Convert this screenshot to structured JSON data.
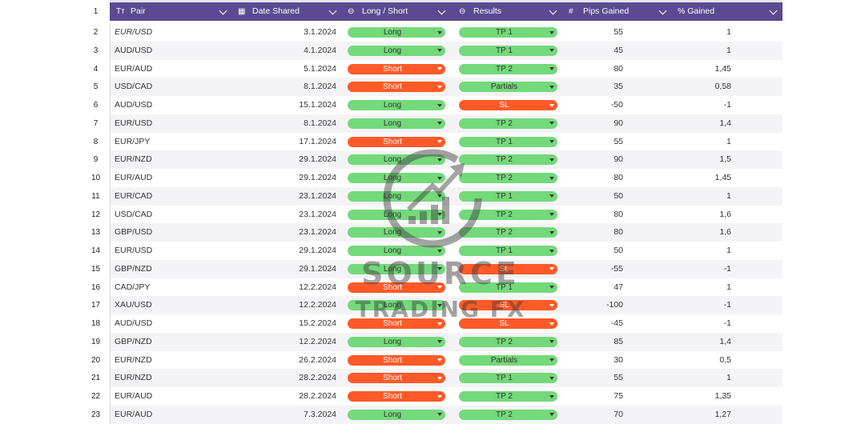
{
  "header": {
    "row_number": "1",
    "columns": [
      {
        "key": "pair",
        "label": "Pair",
        "icon": "text-type-icon",
        "glyph": "Tт"
      },
      {
        "key": "date",
        "label": "Date Shared",
        "icon": "calendar-icon",
        "glyph": "▦"
      },
      {
        "key": "long_short",
        "label": "Long / Short",
        "icon": "select-icon",
        "glyph": "⊖"
      },
      {
        "key": "results",
        "label": "Results",
        "icon": "select-icon",
        "glyph": "⊖"
      },
      {
        "key": "pips",
        "label": "Pips Gained",
        "icon": "number-icon",
        "glyph": "#"
      },
      {
        "key": "pct",
        "label": "% Gained",
        "icon": "none",
        "glyph": ""
      }
    ]
  },
  "colors": {
    "header_bg": "#5b4a91",
    "long_green": "#74d97a",
    "short_red": "#ff5a28",
    "row_alt": "#f4f4f7"
  },
  "watermark": {
    "line1": "SOURCE",
    "line2": "TRADING FX"
  },
  "rows": [
    {
      "n": "2",
      "pair": "EUR/USD",
      "date": "3.1.2024",
      "dir": "Long",
      "res": "TP 1",
      "res_c": "green",
      "pips": "55",
      "pct": "1"
    },
    {
      "n": "3",
      "pair": "AUD/USD",
      "date": "4.1.2024",
      "dir": "Long",
      "res": "TP 1",
      "res_c": "green",
      "pips": "45",
      "pct": "1"
    },
    {
      "n": "4",
      "pair": "EUR/AUD",
      "date": "5.1.2024",
      "dir": "Short",
      "res": "TP 2",
      "res_c": "green",
      "pips": "80",
      "pct": "1,45"
    },
    {
      "n": "5",
      "pair": "USD/CAD",
      "date": "8.1.2024",
      "dir": "Short",
      "res": "Partials",
      "res_c": "green",
      "pips": "35",
      "pct": "0,58"
    },
    {
      "n": "6",
      "pair": "AUD/USD",
      "date": "15.1.2024",
      "dir": "Long",
      "res": "SL",
      "res_c": "red",
      "pips": "-50",
      "pct": "-1"
    },
    {
      "n": "7",
      "pair": "EUR/USD",
      "date": "8.1.2024",
      "dir": "Long",
      "res": "TP 2",
      "res_c": "green",
      "pips": "90",
      "pct": "1,4"
    },
    {
      "n": "8",
      "pair": "EUR/JPY",
      "date": "17.1.2024",
      "dir": "Short",
      "res": "TP 1",
      "res_c": "green",
      "pips": "55",
      "pct": "1"
    },
    {
      "n": "9",
      "pair": "EUR/NZD",
      "date": "29.1.2024",
      "dir": "Long",
      "res": "TP 2",
      "res_c": "green",
      "pips": "90",
      "pct": "1,5"
    },
    {
      "n": "10",
      "pair": "EUR/AUD",
      "date": "29.1.2024",
      "dir": "Long",
      "res": "TP 2",
      "res_c": "green",
      "pips": "80",
      "pct": "1,45"
    },
    {
      "n": "11",
      "pair": "EUR/CAD",
      "date": "23.1.2024",
      "dir": "Long",
      "res": "TP 1",
      "res_c": "green",
      "pips": "50",
      "pct": "1"
    },
    {
      "n": "12",
      "pair": "USD/CAD",
      "date": "23.1.2024",
      "dir": "Long",
      "res": "TP 2",
      "res_c": "green",
      "pips": "80",
      "pct": "1,6"
    },
    {
      "n": "13",
      "pair": "GBP/USD",
      "date": "23.1.2024",
      "dir": "Long",
      "res": "TP 2",
      "res_c": "green",
      "pips": "80",
      "pct": "1,6"
    },
    {
      "n": "14",
      "pair": "EUR/USD",
      "date": "29.1.2024",
      "dir": "Long",
      "res": "TP 1",
      "res_c": "green",
      "pips": "50",
      "pct": "1"
    },
    {
      "n": "15",
      "pair": "GBP/NZD",
      "date": "29.1.2024",
      "dir": "Long",
      "res": "SL",
      "res_c": "red",
      "pips": "-55",
      "pct": "-1"
    },
    {
      "n": "16",
      "pair": "CAD/JPY",
      "date": "12.2.2024",
      "dir": "Short",
      "res": "TP 1",
      "res_c": "green",
      "pips": "47",
      "pct": "1"
    },
    {
      "n": "17",
      "pair": "XAU/USD",
      "date": "12.2.2024",
      "dir": "Long",
      "res": "SL",
      "res_c": "red",
      "pips": "-100",
      "pct": "-1"
    },
    {
      "n": "18",
      "pair": "AUD/USD",
      "date": "15.2.2024",
      "dir": "Short",
      "res": "SL",
      "res_c": "red",
      "pips": "-45",
      "pct": "-1"
    },
    {
      "n": "19",
      "pair": "GBP/NZD",
      "date": "12.2.2024",
      "dir": "Long",
      "res": "TP 2",
      "res_c": "green",
      "pips": "85",
      "pct": "1,4"
    },
    {
      "n": "20",
      "pair": "EUR/NZD",
      "date": "26.2.2024",
      "dir": "Short",
      "res": "Partials",
      "res_c": "green",
      "pips": "30",
      "pct": "0,5"
    },
    {
      "n": "21",
      "pair": "EUR/NZD",
      "date": "28.2.2024",
      "dir": "Short",
      "res": "TP 1",
      "res_c": "green",
      "pips": "55",
      "pct": "1"
    },
    {
      "n": "22",
      "pair": "EUR/AUD",
      "date": "28.2.2024",
      "dir": "Short",
      "res": "TP 2",
      "res_c": "green",
      "pips": "75",
      "pct": "1,35"
    },
    {
      "n": "23",
      "pair": "EUR/AUD",
      "date": "7.3.2024",
      "dir": "Long",
      "res": "TP 2",
      "res_c": "green",
      "pips": "70",
      "pct": "1,27"
    }
  ]
}
